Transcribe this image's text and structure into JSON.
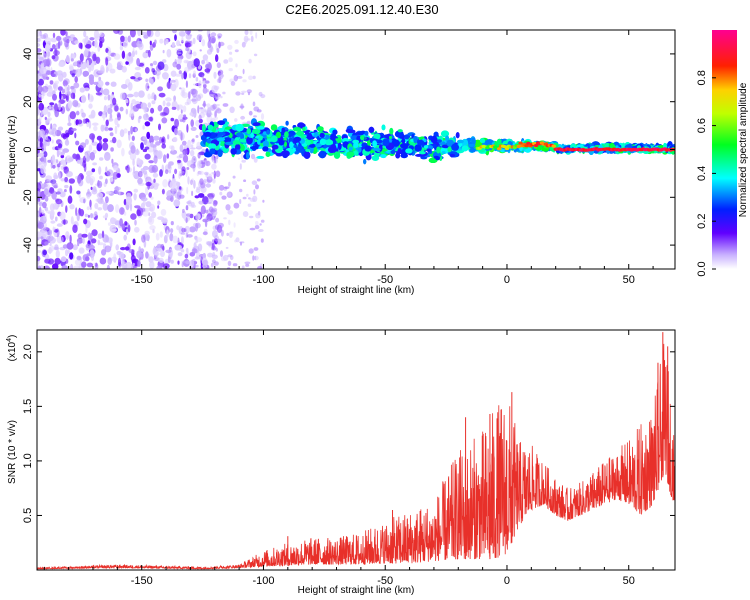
{
  "title": "C2E6.2025.091.12.40.E30",
  "chart_data": [
    {
      "type": "heatmap",
      "xlabel": "Height of straight line (km)",
      "ylabel": "Frequency (Hz)",
      "xlim": [
        -193,
        69
      ],
      "ylim": [
        -50,
        50
      ],
      "xticks": [
        -150,
        -100,
        -50,
        0,
        50
      ],
      "yticks": [
        -40,
        -20,
        0,
        20,
        40
      ],
      "xtick_labels": [
        "-150",
        "-100",
        "-50",
        "0",
        "50"
      ],
      "ytick_labels": [
        "-40",
        "-20",
        "0",
        "20",
        "40"
      ],
      "grid": false,
      "colorbar": {
        "label": "Normalized spectral amplitude",
        "range": [
          0,
          1
        ],
        "ticks": [
          0.0,
          0.2,
          0.4,
          0.6,
          0.8
        ],
        "tick_labels": [
          "0.0",
          "0.2",
          "0.4",
          "0.6",
          "0.8"
        ],
        "colormap": [
          "#ffffff",
          "#6000ff",
          "#0000ff",
          "#00ffff",
          "#00ff00",
          "#ffff00",
          "#ff0000",
          "#ff00aa"
        ]
      },
      "regions": [
        {
          "x_range": [
            -193,
            -120
          ],
          "freq_range": [
            -50,
            50
          ],
          "amplitude": 0.08,
          "description": "sparse purple speckle"
        },
        {
          "x_range": [
            -120,
            -20
          ],
          "freq_center": 2,
          "freq_halfwidth": 10,
          "amplitude": 0.3
        },
        {
          "x_range": [
            -20,
            20
          ],
          "freq_center": 1,
          "freq_halfwidth": 2.5,
          "amplitude": 0.55
        },
        {
          "x_range": [
            20,
            69
          ],
          "freq_center": 0,
          "freq_halfwidth": 1,
          "amplitude": 0.95
        }
      ]
    },
    {
      "type": "line",
      "xlabel": "Height of straight line (km)",
      "ylabel": "SNR (10 * v/v)",
      "exponent_label": "(x10",
      "exponent_power": "4",
      "xlim": [
        -193,
        69
      ],
      "ylim": [
        0,
        2.2
      ],
      "xticks": [
        -150,
        -100,
        -50,
        0,
        50
      ],
      "yticks": [
        0.5,
        1.0,
        1.5,
        2.0
      ],
      "xtick_labels": [
        "-150",
        "-100",
        "-50",
        "0",
        "50"
      ],
      "ytick_labels": [
        "0.5",
        "1.0",
        "1.5",
        "2.0"
      ],
      "color": "#e8302a",
      "envelope": {
        "x": [
          -193,
          -160,
          -125,
          -110,
          -100,
          -90,
          -80,
          -70,
          -60,
          -50,
          -40,
          -30,
          -20,
          -10,
          -5,
          0,
          5,
          10,
          15,
          20,
          25,
          30,
          35,
          40,
          45,
          50,
          55,
          60,
          63,
          65,
          67,
          69
        ],
        "peak": [
          0.02,
          0.05,
          0.03,
          0.05,
          0.18,
          0.25,
          0.3,
          0.3,
          0.35,
          0.45,
          0.55,
          0.65,
          1.1,
          1.3,
          1.5,
          1.65,
          1.2,
          1.15,
          1.0,
          0.85,
          0.75,
          0.8,
          0.9,
          1.0,
          1.1,
          1.2,
          1.35,
          1.5,
          1.9,
          2.15,
          1.7,
          1.1
        ],
        "base": [
          0.01,
          0.02,
          0.01,
          0.02,
          0.03,
          0.04,
          0.05,
          0.05,
          0.05,
          0.06,
          0.06,
          0.08,
          0.1,
          0.1,
          0.1,
          0.15,
          0.4,
          0.55,
          0.6,
          0.5,
          0.45,
          0.5,
          0.55,
          0.6,
          0.65,
          0.6,
          0.5,
          0.6,
          0.8,
          0.9,
          0.7,
          0.6
        ]
      },
      "spikes": [
        {
          "x": -90,
          "y": 0.31
        },
        {
          "x": -47,
          "y": 0.55
        },
        {
          "x": -17,
          "y": 1.4
        },
        {
          "x": -7,
          "y": 1.43
        },
        {
          "x": 2,
          "y": 1.63
        },
        {
          "x": 62,
          "y": 1.9
        },
        {
          "x": 64,
          "y": 2.18
        },
        {
          "x": 66,
          "y": 2.05
        }
      ]
    }
  ]
}
